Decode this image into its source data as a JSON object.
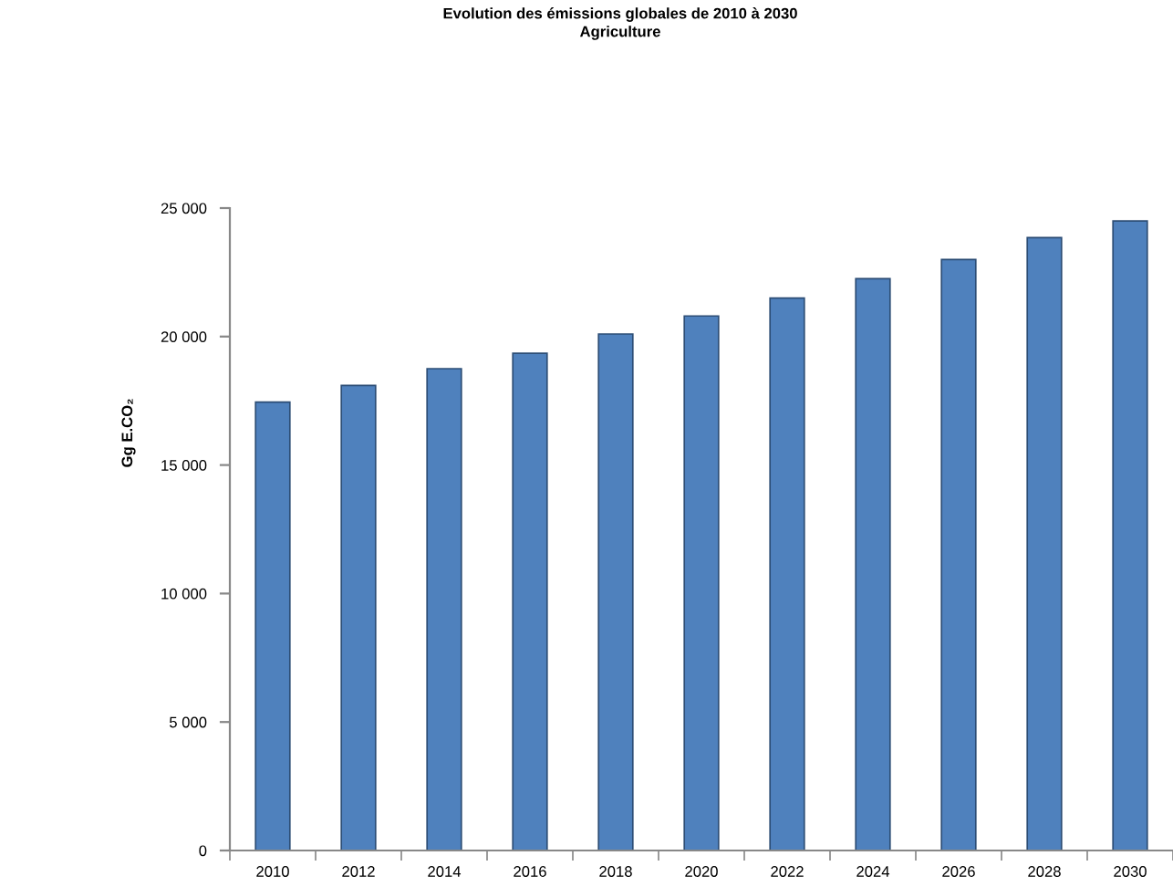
{
  "chart_data": {
    "type": "bar",
    "title": "Evolution des émissions globales de 2010 à 2030",
    "subtitle": "Agriculture",
    "ylabel": "Gg E.CO₂",
    "categories": [
      "2010",
      "2012",
      "2014",
      "2016",
      "2018",
      "2020",
      "2022",
      "2024",
      "2026",
      "2028",
      "2030"
    ],
    "values": [
      17450,
      18100,
      18750,
      19350,
      20100,
      20800,
      21500,
      22250,
      23000,
      23850,
      24500
    ],
    "color": "#4f81bd",
    "ylim": [
      0,
      25000
    ],
    "yticks": [
      0,
      {
        "value": 5000,
        "label": "5 000"
      },
      {
        "value": 10000,
        "label": "10 000"
      },
      {
        "value": 15000,
        "label": "15 000"
      },
      {
        "value": 20000,
        "label": "20 000"
      },
      {
        "value": 25000,
        "label": "25 000"
      }
    ],
    "grid": false,
    "legend": false
  }
}
